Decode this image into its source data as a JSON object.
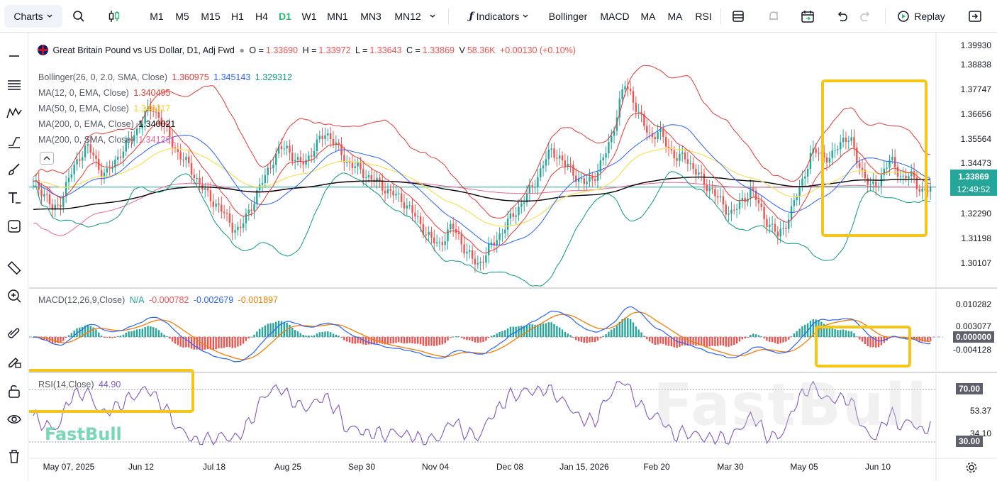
{
  "toolbar": {
    "charts_label": "Charts",
    "timeframes": [
      "M1",
      "M5",
      "M15",
      "H1",
      "H4",
      "D1",
      "W1",
      "MN1",
      "MN3",
      "MN12"
    ],
    "active_timeframe": "D1",
    "indicators_label": "Indicators",
    "quick_indicators": [
      "Bollinger",
      "MACD",
      "MA",
      "MA",
      "RSI"
    ],
    "replay_label": "Replay"
  },
  "symbol": {
    "name": "Great Britain Pound vs US Dollar, D1, Adj Fwd",
    "open_label": "O =",
    "open": "1.33690",
    "high_label": "H =",
    "high": "1.33972",
    "low_label": "L =",
    "low": "1.33643",
    "close_label": "C =",
    "close": "1.33869",
    "volume_label": "V",
    "volume": "58.36K",
    "change": "+0.00130 (+0.10%)"
  },
  "indicators": {
    "bollinger": {
      "label": "Bollinger(26, 0, 2.0, SMA, Close)",
      "upper": "1.360975",
      "middle": "1.345143",
      "lower": "1.329312"
    },
    "ma1": {
      "label": "MA(12, 0, EMA, Close)",
      "value": "1.340495"
    },
    "ma2": {
      "label": "MA(50, 0, EMA, Close)",
      "value": "1.344317"
    },
    "ma3": {
      "label": "MA(200, 0, EMA, Close)",
      "value": "1.340021"
    },
    "ma4": {
      "label": "MA(200, 0, SMA, Close)",
      "value": "1.341261"
    },
    "macd": {
      "label": "MACD(12,26,9,Close)",
      "hist": "N/A",
      "macd": "-0.000782",
      "signal": "-0.002679",
      "diff": "-0.001897"
    },
    "rsi": {
      "label": "RSI(14,Close)",
      "value": "44.90"
    }
  },
  "price_axis": {
    "labels": [
      "1.39930",
      "1.38838",
      "1.37747",
      "1.36656",
      "1.35564",
      "1.34473",
      "1.32290",
      "1.31198",
      "1.30107"
    ],
    "current_price": "1.33869",
    "countdown": "12:49:52"
  },
  "macd_axis": {
    "labels": [
      "0.010282",
      "0.003077",
      "0.000000",
      "-0.004128"
    ]
  },
  "rsi_axis": {
    "labels": [
      "70.00",
      "53.37",
      "34.10",
      "30.00"
    ]
  },
  "date_axis": [
    "May 07, 2025",
    "Jun 12",
    "Jul 18",
    "Aug 25",
    "Sep 30",
    "Nov 04",
    "Dec 08",
    "Jan 15, 2026",
    "Feb 20",
    "Mar 30",
    "May 05",
    "Jun 10"
  ],
  "watermark": "FastBull",
  "colors": {
    "up": "#26a69a",
    "down": "#ef5350",
    "bb_upper": "#e53935",
    "bb_mid": "#2962ff",
    "bb_lower": "#089981",
    "ma12": "#e53935",
    "ma50": "#f7e156",
    "ema200": "#000000",
    "sma200": "#f06292",
    "highlight": "#f5c518",
    "rsi": "#7e57c2"
  },
  "chart_data": {
    "type": "candlestick",
    "close_series": [
      1.34,
      1.338,
      1.335,
      1.328,
      1.332,
      1.34,
      1.346,
      1.352,
      1.356,
      1.352,
      1.346,
      1.344,
      1.348,
      1.353,
      1.356,
      1.36,
      1.365,
      1.37,
      1.372,
      1.368,
      1.362,
      1.357,
      1.352,
      1.349,
      1.345,
      1.34,
      1.336,
      1.333,
      1.33,
      1.326,
      1.322,
      1.32,
      1.326,
      1.332,
      1.338,
      1.344,
      1.35,
      1.354,
      1.356,
      1.352,
      1.348,
      1.35,
      1.354,
      1.358,
      1.362,
      1.359,
      1.354,
      1.35,
      1.348,
      1.346,
      1.344,
      1.342,
      1.34,
      1.338,
      1.336,
      1.334,
      1.332,
      1.328,
      1.324,
      1.32,
      1.316,
      1.314,
      1.318,
      1.322,
      1.318,
      1.312,
      1.308,
      1.306,
      1.31,
      1.314,
      1.318,
      1.322,
      1.326,
      1.33,
      1.334,
      1.338,
      1.344,
      1.35,
      1.354,
      1.352,
      1.348,
      1.346,
      1.342,
      1.34,
      1.342,
      1.346,
      1.352,
      1.36,
      1.372,
      1.382,
      1.378,
      1.37,
      1.364,
      1.36,
      1.362,
      1.358,
      1.354,
      1.35,
      1.352,
      1.348,
      1.344,
      1.34,
      1.338,
      1.334,
      1.33,
      1.328,
      1.33,
      1.334,
      1.338,
      1.332,
      1.326,
      1.322,
      1.318,
      1.322,
      1.328,
      1.336,
      1.344,
      1.352,
      1.354,
      1.352,
      1.35,
      1.356,
      1.36,
      1.358,
      1.35,
      1.344,
      1.338,
      1.34,
      1.346,
      1.35,
      1.346,
      1.342,
      1.344,
      1.34,
      1.336,
      1.338
    ],
    "price_range": [
      1.296,
      1.404
    ]
  }
}
